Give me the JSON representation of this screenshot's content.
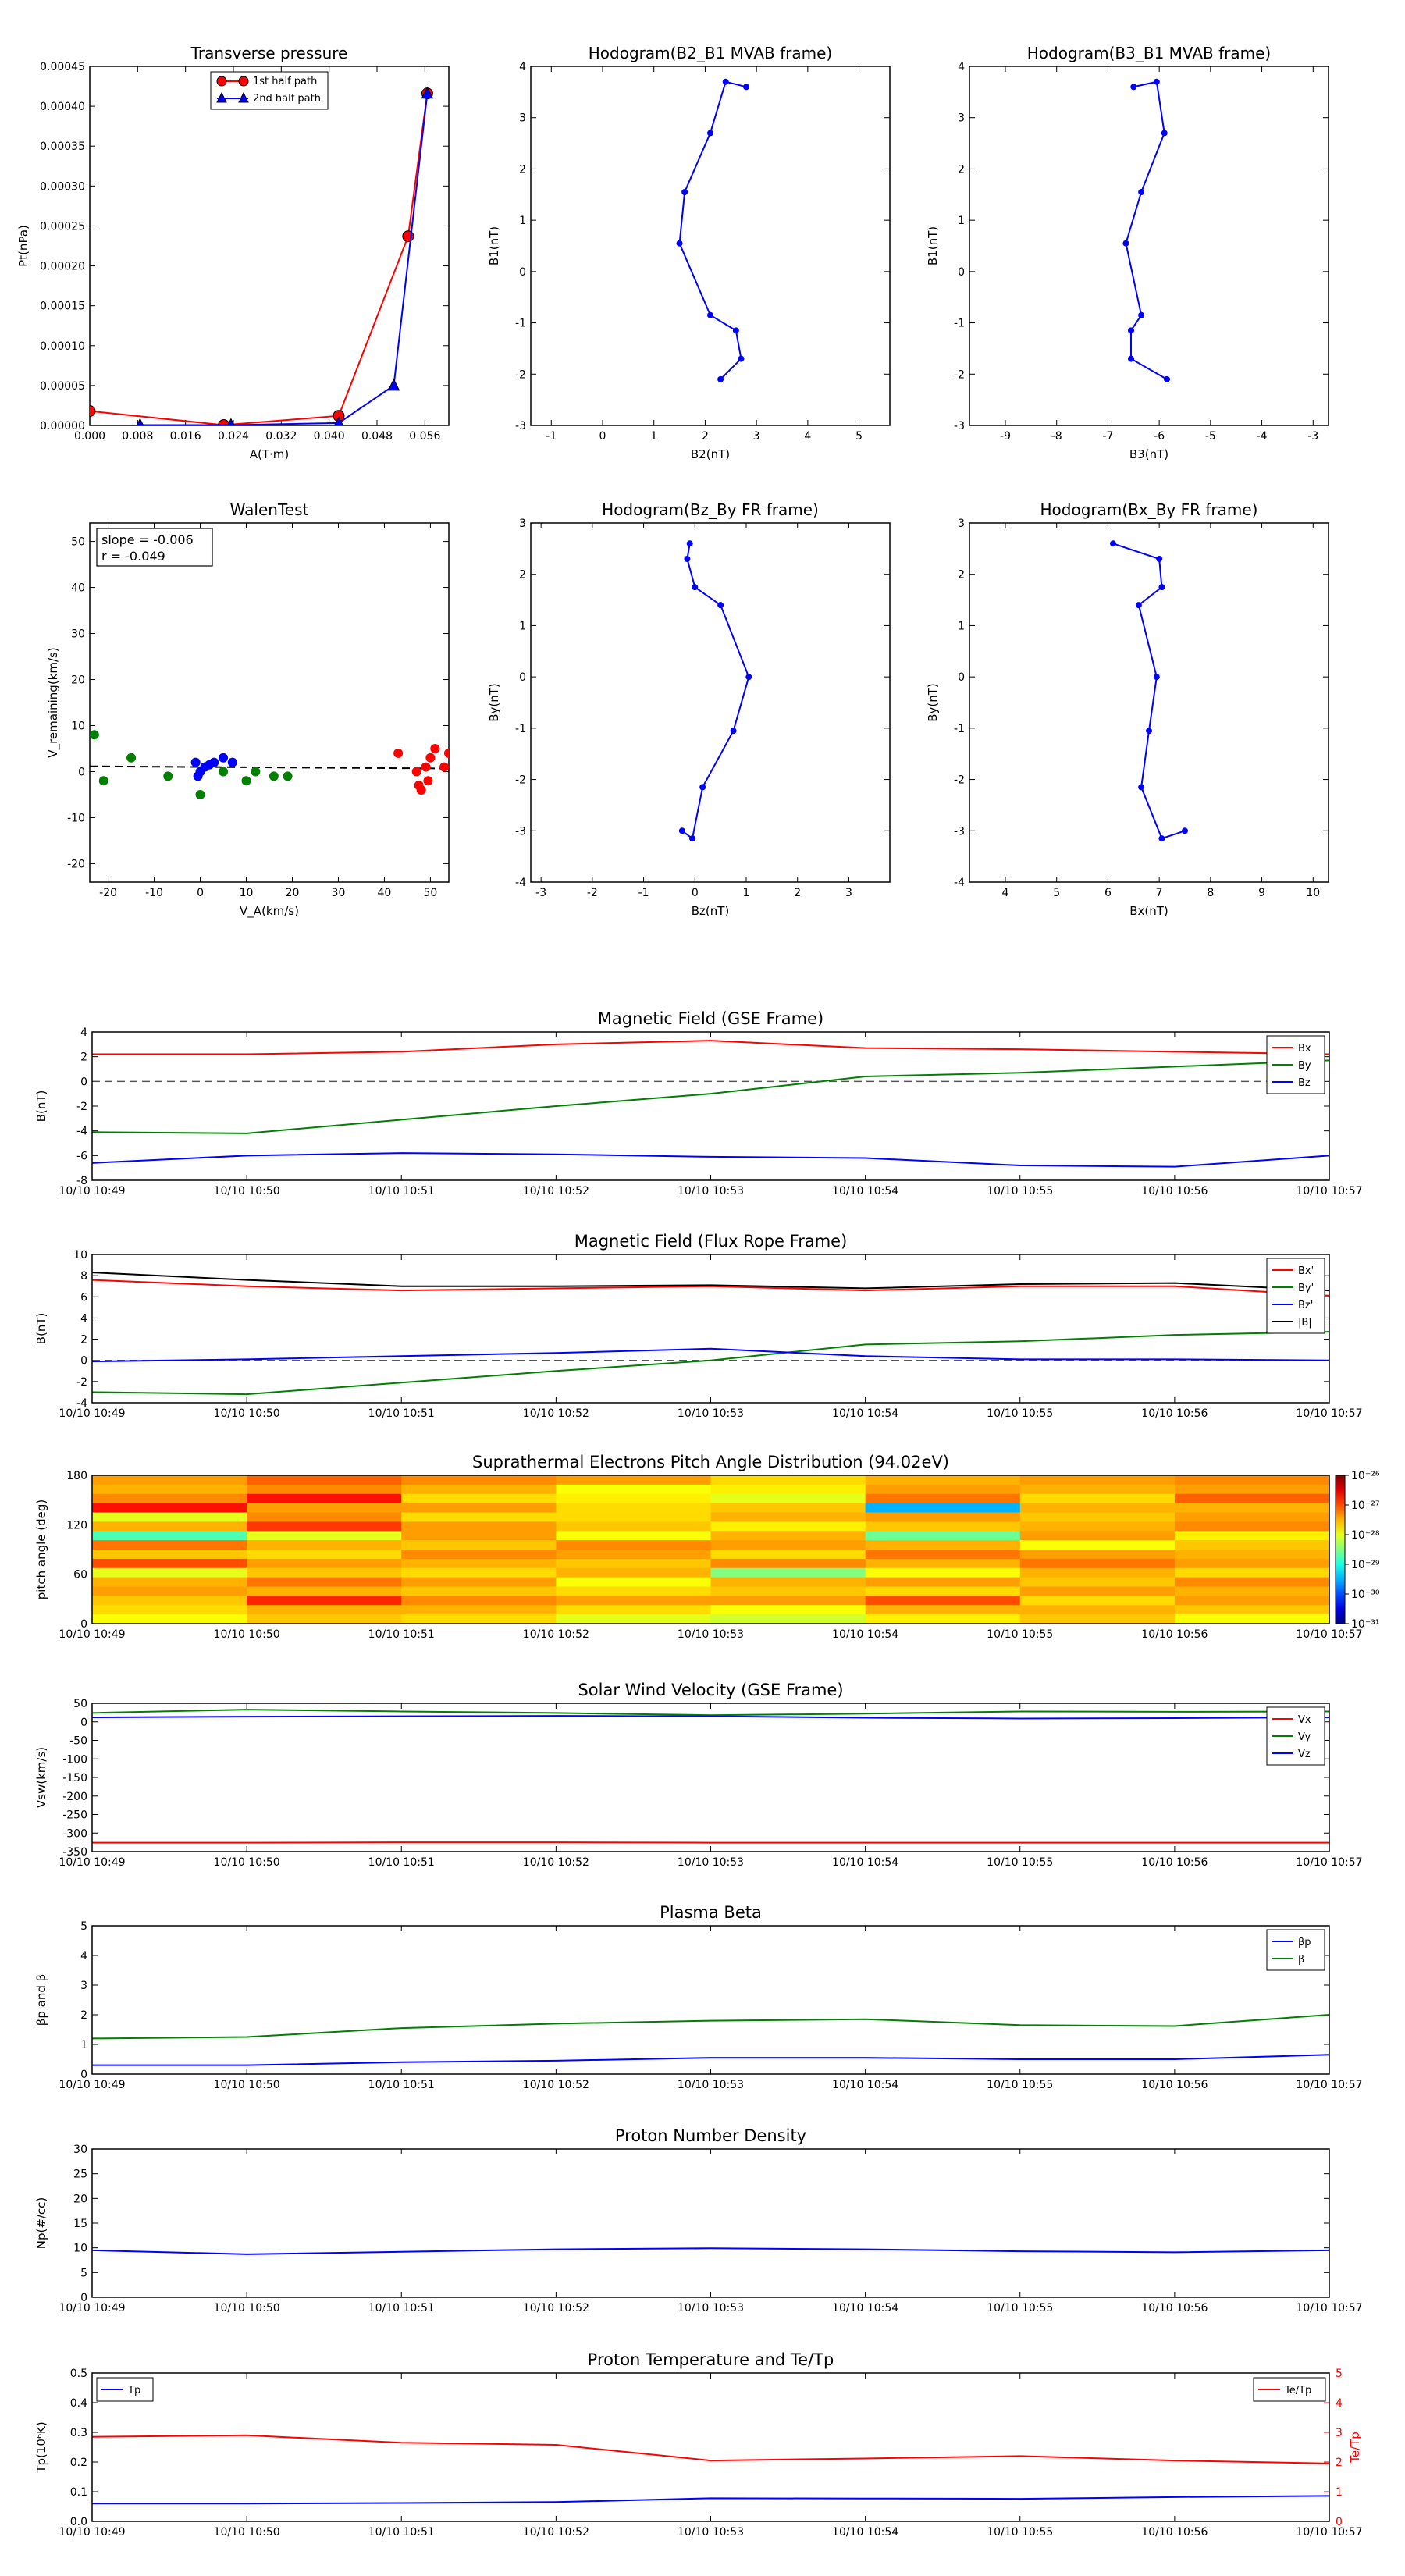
{
  "chart_data": [
    {
      "id": "tp",
      "type": "scatter",
      "title": "Transverse pressure",
      "xlabel": "A(T·m)",
      "ylabel": "Pt(nPa)",
      "xlim": [
        0,
        0.06
      ],
      "ylim": [
        0,
        0.00045
      ],
      "xticks": [
        0,
        0.008,
        0.016,
        0.024,
        0.032,
        0.04,
        0.048,
        0.056
      ],
      "xtick_labels": [
        "0.000",
        "0.008",
        "0.016",
        "0.024",
        "0.032",
        "0.040",
        "0.048",
        "0.056"
      ],
      "yticks": [
        0,
        5e-05,
        0.0001,
        0.00015,
        0.0002,
        0.00025,
        0.0003,
        0.00035,
        0.0004,
        0.00045
      ],
      "ytick_labels": [
        "0.00000",
        "0.00005",
        "0.00010",
        "0.00015",
        "0.00020",
        "0.00025",
        "0.00030",
        "0.00035",
        "0.00040",
        "0.00045"
      ],
      "legend": "upper-center",
      "series": [
        {
          "name": "1st half path",
          "marker": "circle",
          "color": "#ff0000",
          "x": [
            0,
            0.0224,
            0.0416,
            0.0532,
            0.0564
          ],
          "y": [
            1.8e-05,
            5e-07,
            1.2e-05,
            0.000237,
            0.000416
          ]
        },
        {
          "name": "2nd half path",
          "marker": "triangle",
          "color": "#0000ff",
          "x": [
            0.0564,
            0.0508,
            0.0416,
            0.0236,
            0.0084
          ],
          "y": [
            0.000416,
            5e-05,
            3e-06,
            5e-07,
            5e-07
          ]
        }
      ]
    },
    {
      "id": "h1",
      "type": "line",
      "title": "Hodogram(B2_B1 MVAB frame)",
      "xlabel": "B2(nT)",
      "ylabel": "B1(nT)",
      "xlim": [
        -1.4,
        5.6
      ],
      "ylim": [
        -3,
        4
      ],
      "xticks": [
        -1,
        0,
        1,
        2,
        3,
        4,
        5
      ],
      "yticks": [
        -3,
        -2,
        -1,
        0,
        1,
        2,
        3,
        4
      ],
      "color": "#0000ff",
      "x": [
        2.8,
        2.4,
        2.1,
        1.6,
        1.5,
        2.1,
        2.6,
        2.7,
        2.3
      ],
      "y": [
        3.6,
        3.7,
        2.7,
        1.55,
        0.55,
        -0.85,
        -1.15,
        -1.7,
        -2.1
      ]
    },
    {
      "id": "h2",
      "type": "line",
      "title": "Hodogram(B3_B1 MVAB frame)",
      "xlabel": "B3(nT)",
      "ylabel": "B1(nT)",
      "xlim": [
        -9.7,
        -2.7
      ],
      "ylim": [
        -3,
        4
      ],
      "xticks": [
        -9,
        -8,
        -7,
        -6,
        -5,
        -4,
        -3
      ],
      "yticks": [
        -3,
        -2,
        -1,
        0,
        1,
        2,
        3,
        4
      ],
      "color": "#0000ff",
      "x": [
        -6.5,
        -6.05,
        -5.9,
        -6.35,
        -6.65,
        -6.35,
        -6.55,
        -6.55,
        -5.85
      ],
      "y": [
        3.6,
        3.7,
        2.7,
        1.55,
        0.55,
        -0.85,
        -1.15,
        -1.7,
        -2.1
      ]
    },
    {
      "id": "walen",
      "type": "scatter",
      "title": "WalenTest",
      "xlabel": "V_A(km/s)",
      "ylabel": "V_remaining(km/s)",
      "xlim": [
        -24,
        54
      ],
      "ylim": [
        -24,
        54
      ],
      "xticks": [
        -20,
        -10,
        0,
        10,
        20,
        30,
        40,
        50
      ],
      "yticks": [
        -20,
        -10,
        0,
        10,
        20,
        30,
        40,
        50
      ],
      "annotation": [
        "slope = -0.006",
        "r = -0.049"
      ],
      "fit_line": {
        "slope": -0.006,
        "intercept": 1
      },
      "series": [
        {
          "color": "#008000",
          "x": [
            -23,
            -21,
            -15,
            -7,
            0,
            5,
            10,
            12,
            16,
            19
          ],
          "y": [
            8,
            -2,
            3,
            -1,
            -5,
            0,
            -2,
            0,
            -1,
            -1
          ]
        },
        {
          "color": "#0000ff",
          "x": [
            -1,
            -0.5,
            0,
            1,
            2,
            3,
            5,
            7
          ],
          "y": [
            2,
            -1,
            0,
            1,
            1.5,
            2,
            3,
            2
          ]
        },
        {
          "color": "#ff0000",
          "x": [
            43,
            47,
            47.5,
            48,
            49,
            49.5,
            50,
            51,
            53,
            54
          ],
          "y": [
            4,
            0,
            -3,
            -4,
            1,
            -2,
            3,
            5,
            1,
            4
          ]
        }
      ]
    },
    {
      "id": "h3",
      "type": "line",
      "title": "Hodogram(Bz_By FR frame)",
      "xlabel": "Bz(nT)",
      "ylabel": "By(nT)",
      "xlim": [
        -3.2,
        3.8
      ],
      "ylim": [
        -4,
        3
      ],
      "xticks": [
        -3,
        -2,
        -1,
        0,
        1,
        2,
        3
      ],
      "yticks": [
        -4,
        -3,
        -2,
        -1,
        0,
        1,
        2,
        3
      ],
      "color": "#0000ff",
      "x": [
        -0.1,
        -0.15,
        0,
        0.5,
        1.05,
        0.75,
        0.15,
        -0.05,
        -0.25
      ],
      "y": [
        2.6,
        2.3,
        1.75,
        1.4,
        0,
        -1.05,
        -2.15,
        -3.15,
        -3
      ]
    },
    {
      "id": "h4",
      "type": "line",
      "title": "Hodogram(Bx_By FR frame)",
      "xlabel": "Bx(nT)",
      "ylabel": "By(nT)",
      "xlim": [
        3.3,
        10.3
      ],
      "ylim": [
        -4,
        3
      ],
      "xticks": [
        4,
        5,
        6,
        7,
        8,
        9,
        10
      ],
      "yticks": [
        -4,
        -3,
        -2,
        -1,
        0,
        1,
        2,
        3
      ],
      "color": "#0000ff",
      "x": [
        6.1,
        7,
        7.05,
        6.6,
        6.95,
        6.8,
        6.65,
        7.05,
        7.5
      ],
      "y": [
        2.6,
        2.3,
        1.75,
        1.4,
        0,
        -1.05,
        -2.15,
        -3.15,
        -3
      ]
    },
    {
      "id": "bgse",
      "type": "line",
      "title": "Magnetic Field (GSE Frame)",
      "ylabel": "B(nT)",
      "ylim": [
        -8,
        4
      ],
      "yticks": [
        -8,
        -6,
        -4,
        -2,
        0,
        2,
        4
      ],
      "hline": 0,
      "legend": "right",
      "series": [
        {
          "name": "Bx",
          "color": "#ff0000",
          "values": [
            2.2,
            2.2,
            2.4,
            3,
            3.3,
            2.7,
            2.6,
            2.4,
            2.2
          ]
        },
        {
          "name": "By",
          "color": "#008000",
          "values": [
            -4.1,
            -4.2,
            -3.1,
            -2,
            -1,
            0.4,
            0.7,
            1.2,
            1.7
          ]
        },
        {
          "name": "Bz",
          "color": "#0000ff",
          "values": [
            -6.6,
            -6,
            -5.8,
            -5.9,
            -6.1,
            -6.2,
            -6.8,
            -6.9,
            -6
          ]
        }
      ]
    },
    {
      "id": "bfr",
      "type": "line",
      "title": "Magnetic Field (Flux Rope Frame)",
      "ylabel": "B(nT)",
      "ylim": [
        -4,
        10
      ],
      "yticks": [
        -4,
        -2,
        0,
        2,
        4,
        6,
        8,
        10
      ],
      "hline": 0,
      "legend": "right",
      "series": [
        {
          "name": "Bx'",
          "color": "#ff0000",
          "values": [
            7.6,
            7,
            6.6,
            6.8,
            7,
            6.6,
            7,
            7,
            6.1
          ]
        },
        {
          "name": "By'",
          "color": "#008000",
          "values": [
            -3,
            -3.2,
            -2.1,
            -1,
            0,
            1.5,
            1.8,
            2.4,
            2.7
          ]
        },
        {
          "name": "Bz'",
          "color": "#0000ff",
          "values": [
            -0.1,
            0.1,
            0.4,
            0.7,
            1.1,
            0.4,
            0.1,
            0.1,
            0
          ]
        },
        {
          "name": "|B|",
          "color": "#000000",
          "values": [
            8.3,
            7.6,
            7,
            7,
            7.1,
            6.8,
            7.2,
            7.3,
            6.6
          ]
        }
      ]
    },
    {
      "id": "pad",
      "type": "heatmap",
      "title": "Suprathermal Electrons Pitch Angle Distribution (94.02eV)",
      "ylabel": "pitch angle (deg)",
      "ylim": [
        0,
        180
      ],
      "yticks": [
        0,
        60,
        120,
        180
      ],
      "colorbar": {
        "scale": "log",
        "min_exp": -31,
        "max_exp": -26,
        "labels": [
          "10⁻³¹",
          "10⁻³⁰",
          "10⁻²⁹",
          "10⁻²⁸",
          "10⁻²⁷",
          "10⁻²⁶"
        ]
      },
      "rows": [
        [
          0.72,
          0.78,
          0.74,
          0.72,
          0.66,
          0.7,
          0.72,
          0.74
        ],
        [
          0.7,
          0.74,
          0.7,
          0.62,
          0.64,
          0.72,
          0.7,
          0.72
        ],
        [
          0.74,
          0.86,
          0.66,
          0.64,
          0.6,
          0.76,
          0.66,
          0.78
        ],
        [
          0.86,
          0.72,
          0.72,
          0.66,
          0.68,
          0.3,
          0.7,
          0.7
        ],
        [
          0.6,
          0.74,
          0.66,
          0.66,
          0.7,
          0.72,
          0.68,
          0.72
        ],
        [
          0.7,
          0.82,
          0.72,
          0.68,
          0.64,
          0.68,
          0.7,
          0.74
        ],
        [
          0.45,
          0.6,
          0.72,
          0.62,
          0.7,
          0.48,
          0.72,
          0.64
        ],
        [
          0.76,
          0.7,
          0.68,
          0.74,
          0.72,
          0.7,
          0.62,
          0.68
        ],
        [
          0.68,
          0.66,
          0.74,
          0.72,
          0.66,
          0.76,
          0.72,
          0.7
        ],
        [
          0.8,
          0.72,
          0.7,
          0.68,
          0.74,
          0.7,
          0.76,
          0.72
        ],
        [
          0.6,
          0.68,
          0.66,
          0.7,
          0.5,
          0.62,
          0.7,
          0.66
        ],
        [
          0.7,
          0.76,
          0.72,
          0.62,
          0.7,
          0.72,
          0.68,
          0.74
        ],
        [
          0.72,
          0.7,
          0.68,
          0.66,
          0.68,
          0.66,
          0.72,
          0.7
        ],
        [
          0.68,
          0.84,
          0.74,
          0.72,
          0.72,
          0.8,
          0.66,
          0.72
        ],
        [
          0.66,
          0.7,
          0.7,
          0.66,
          0.62,
          0.7,
          0.7,
          0.68
        ],
        [
          0.62,
          0.68,
          0.66,
          0.6,
          0.58,
          0.64,
          0.68,
          0.62
        ]
      ]
    },
    {
      "id": "vsw",
      "type": "line",
      "title": "Solar Wind Velocity (GSE Frame)",
      "ylabel": "Vsw(km/s)",
      "ylim": [
        -350,
        50
      ],
      "yticks": [
        -350,
        -300,
        -250,
        -200,
        -150,
        -100,
        -50,
        0,
        50
      ],
      "legend": "right",
      "series": [
        {
          "name": "Vx",
          "color": "#ff0000",
          "values": [
            -326,
            -326,
            -325,
            -325,
            -326,
            -326,
            -326,
            -326,
            -326
          ]
        },
        {
          "name": "Vy",
          "color": "#008000",
          "values": [
            24,
            33,
            28,
            24,
            18,
            22,
            28,
            27,
            28
          ]
        },
        {
          "name": "Vz",
          "color": "#0000ff",
          "values": [
            12,
            14,
            15,
            16,
            15,
            11,
            9,
            10,
            12
          ]
        }
      ]
    },
    {
      "id": "beta",
      "type": "line",
      "title": "Plasma Beta",
      "ylabel": "βp and β",
      "ylim": [
        0,
        5
      ],
      "yticks": [
        0,
        1,
        2,
        3,
        4,
        5
      ],
      "legend": "right",
      "series": [
        {
          "name": "βp",
          "color": "#0000ff",
          "values": [
            0.3,
            0.3,
            0.4,
            0.45,
            0.55,
            0.55,
            0.5,
            0.5,
            0.65
          ]
        },
        {
          "name": "β",
          "color": "#008000",
          "values": [
            1.2,
            1.25,
            1.55,
            1.7,
            1.8,
            1.85,
            1.65,
            1.62,
            2
          ]
        }
      ]
    },
    {
      "id": "np",
      "type": "line",
      "title": "Proton Number Density",
      "ylabel": "Np(#/cc)",
      "ylim": [
        0,
        30
      ],
      "yticks": [
        0,
        5,
        10,
        15,
        20,
        25,
        30
      ],
      "series": [
        {
          "color": "#0000ff",
          "values": [
            9.5,
            8.7,
            9.2,
            9.7,
            9.9,
            9.7,
            9.3,
            9.1,
            9.5
          ]
        }
      ]
    },
    {
      "id": "tp2",
      "type": "line",
      "title": "Proton Temperature and Te/Tp",
      "ylabel": "Tp(10⁶K)",
      "ylim": [
        0,
        0.5
      ],
      "yticks": [
        0,
        0.1,
        0.2,
        0.3,
        0.4,
        0.5
      ],
      "y2label": "Te/Tp",
      "y2lim": [
        0,
        5
      ],
      "y2ticks": [
        0,
        1,
        2,
        3,
        4,
        5
      ],
      "series": [
        {
          "name": "Tp",
          "color": "#0000ff",
          "axis": "left",
          "legend": "upper-left",
          "values": [
            0.06,
            0.06,
            0.062,
            0.065,
            0.078,
            0.077,
            0.076,
            0.082,
            0.086
          ]
        },
        {
          "name": "Te/Tp",
          "color": "#ff0000",
          "axis": "right",
          "legend": "upper-right",
          "values": [
            2.85,
            2.9,
            2.65,
            2.58,
            2.05,
            2.12,
            2.2,
            2.05,
            1.95
          ]
        }
      ]
    }
  ],
  "time_labels": [
    "10/10 10:49",
    "10/10 10:50",
    "10/10 10:51",
    "10/10 10:52",
    "10/10 10:53",
    "10/10 10:54",
    "10/10 10:55",
    "10/10 10:56",
    "10/10 10:57"
  ]
}
